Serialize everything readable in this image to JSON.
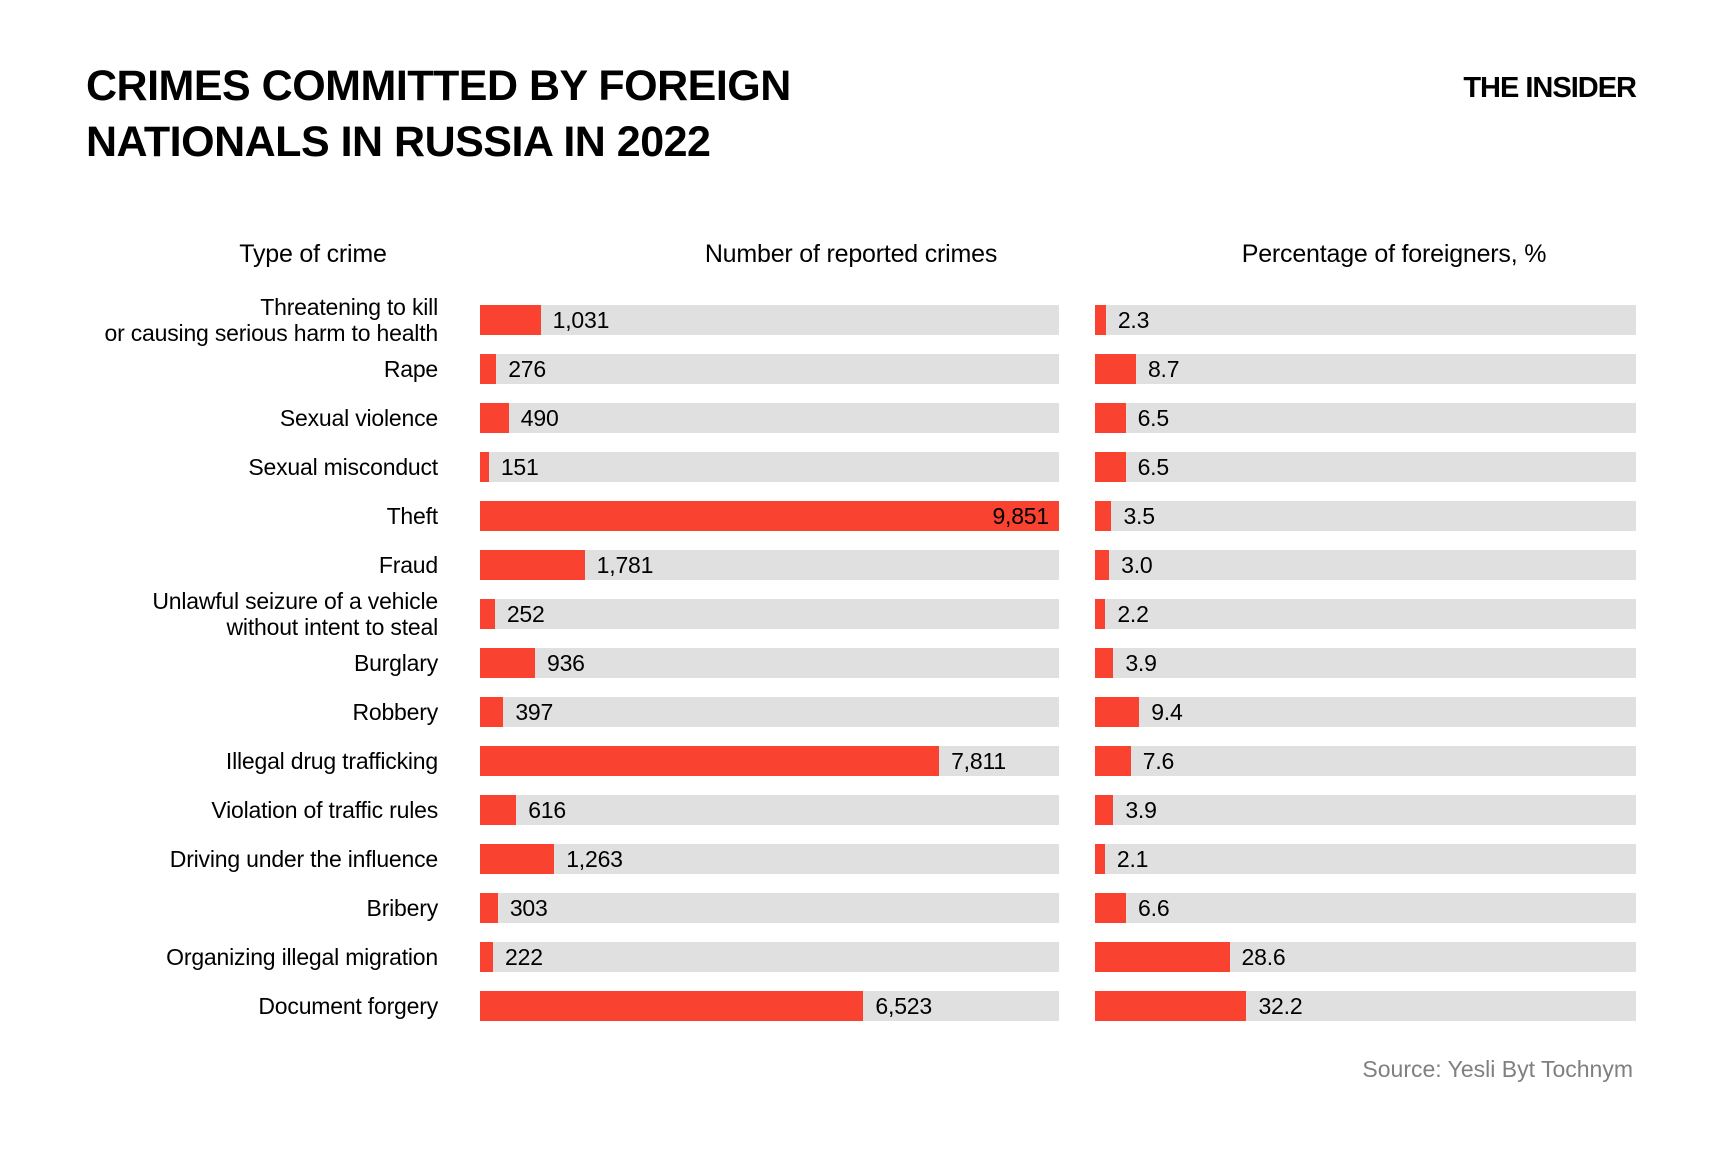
{
  "header": {
    "title_line1": "CRIMES COMMITTED BY FOREIGN",
    "title_line2": "NATIONALS IN RUSSIA IN 2022",
    "brand": "THE INSIDER"
  },
  "columns": {
    "crime": "Type of crime",
    "counts": "Number of reported crimes",
    "percent": "Percentage of foreigners, %"
  },
  "source": "Source: Yesli Byt Tochnym",
  "colors": {
    "bar": "#F9422F",
    "track": "#E0E0E0",
    "source_text": "#808080"
  },
  "chart_data": {
    "type": "bar",
    "orientation": "horizontal",
    "title": "CRIMES COMMITTED BY FOREIGN NATIONALS IN RUSSIA IN 2022",
    "grid": false,
    "legend": false,
    "categories": [
      "Threatening to kill\nor causing serious harm to health",
      "Rape",
      "Sexual violence",
      "Sexual misconduct",
      "Theft",
      "Fraud",
      "Unlawful seizure of a vehicle\nwithout intent to steal",
      "Burglary",
      "Robbery",
      "Illegal drug trafficking",
      "Violation of traffic rules",
      "Driving under the influence",
      "Bribery",
      "Organizing illegal migration",
      "Document forgery"
    ],
    "series": [
      {
        "name": "Number of reported crimes",
        "values": [
          1031,
          276,
          490,
          151,
          9851,
          1781,
          252,
          936,
          397,
          7811,
          616,
          1263,
          303,
          222,
          6523
        ],
        "value_labels": [
          "1,031",
          "276",
          "490",
          "151",
          "9,851",
          "1,781",
          "252",
          "936",
          "397",
          "7,811",
          "616",
          "1,263",
          "303",
          "222",
          "6,523"
        ],
        "xlim": [
          0,
          9851
        ]
      },
      {
        "name": "Percentage of foreigners, %",
        "values": [
          2.3,
          8.7,
          6.5,
          6.5,
          3.5,
          3.0,
          2.2,
          3.9,
          9.4,
          7.6,
          3.9,
          2.1,
          6.6,
          28.6,
          32.2
        ],
        "value_labels": [
          "2.3",
          "8.7",
          "6.5",
          "6.5",
          "3.5",
          "3.0",
          "2.2",
          "3.9",
          "9.4",
          "7.6",
          "3.9",
          "2.1",
          "6.6",
          "28.6",
          "32.2"
        ],
        "xlim": [
          0,
          115
        ]
      }
    ]
  }
}
